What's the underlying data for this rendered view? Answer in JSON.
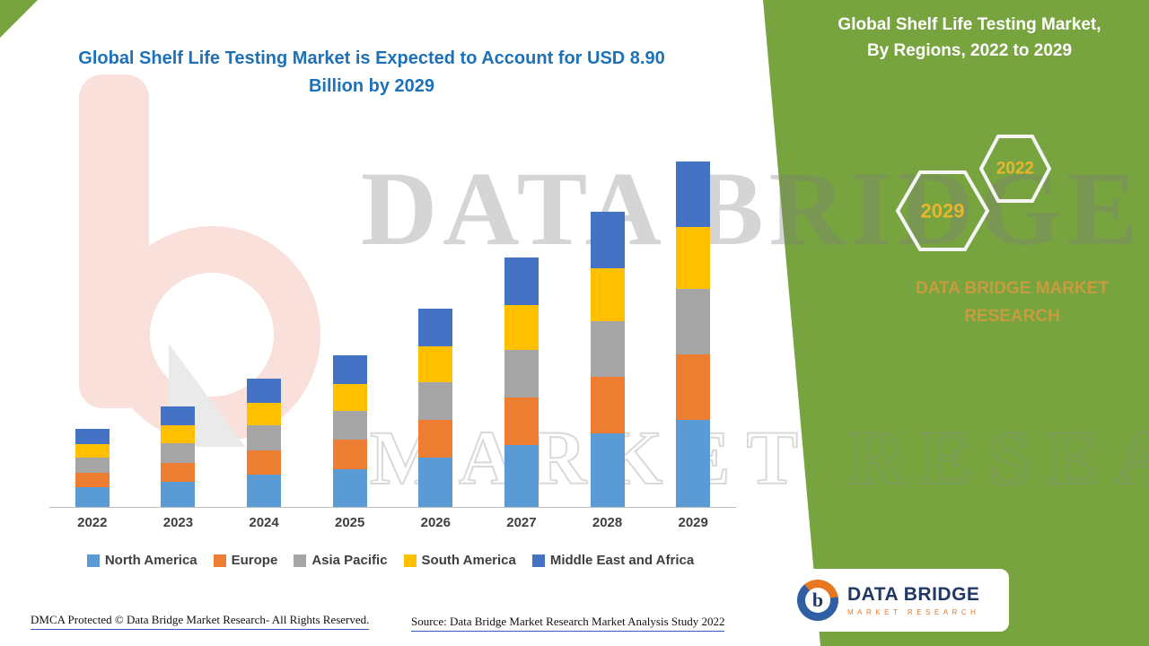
{
  "page": {
    "title_left": "Global Shelf Life Testing Market is Expected to Account for USD 8.90 Billion by 2029",
    "panel_title_line1": "Global Shelf Life Testing Market,",
    "panel_title_line2": "By Regions, 2022 to 2029"
  },
  "hexagons": {
    "front_year": "2029",
    "back_year": "2022"
  },
  "brand_text": "DATA BRIDGE MARKET RESEARCH",
  "watermark": {
    "line1": "DATA BRIDGE",
    "line2": "MARKET RESEARCH",
    "logo_letter": "b"
  },
  "logo": {
    "letter": "b",
    "title": "DATA BRIDGE",
    "subtitle": "MARKET RESEARCH"
  },
  "footer": {
    "dmca": "DMCA Protected © Data Bridge Market Research- All Rights Reserved.",
    "source": "Source: Data Bridge Market Research Market Analysis Study 2022"
  },
  "colors": {
    "panel_green": "#78A440",
    "title_blue": "#1D71B8",
    "gold": "#E7B52E",
    "brand_gold": "#C69C3F"
  },
  "chart_data": {
    "type": "bar",
    "stacked": true,
    "title": "Global Shelf Life Testing Market, By Regions, 2022 to 2029",
    "unit": "USD Billion",
    "xlabel": "",
    "ylabel": "",
    "grid": false,
    "legend_position": "bottom",
    "ylim": [
      0,
      9.0
    ],
    "categories": [
      "2022",
      "2023",
      "2024",
      "2025",
      "2026",
      "2027",
      "2028",
      "2029"
    ],
    "totals": [
      2.0,
      2.6,
      3.3,
      3.9,
      5.1,
      6.4,
      7.6,
      8.9
    ],
    "highlight_total": {
      "year": "2029",
      "value": 8.9
    },
    "series": [
      {
        "name": "North America",
        "color": "#5B9BD5",
        "values": [
          0.5,
          0.65,
          0.83,
          0.98,
          1.28,
          1.6,
          1.9,
          2.23
        ]
      },
      {
        "name": "Europe",
        "color": "#ED7D31",
        "values": [
          0.38,
          0.49,
          0.63,
          0.74,
          0.97,
          1.22,
          1.44,
          1.69
        ]
      },
      {
        "name": "Asia Pacific",
        "color": "#A5A5A5",
        "values": [
          0.38,
          0.49,
          0.63,
          0.74,
          0.97,
          1.22,
          1.44,
          1.69
        ]
      },
      {
        "name": "South America",
        "color": "#FFC000",
        "values": [
          0.36,
          0.47,
          0.59,
          0.7,
          0.92,
          1.15,
          1.37,
          1.6
        ]
      },
      {
        "name": "Middle East and Africa",
        "color": "#4472C4",
        "values": [
          0.38,
          0.49,
          0.63,
          0.74,
          0.97,
          1.22,
          1.44,
          1.69
        ]
      }
    ]
  }
}
